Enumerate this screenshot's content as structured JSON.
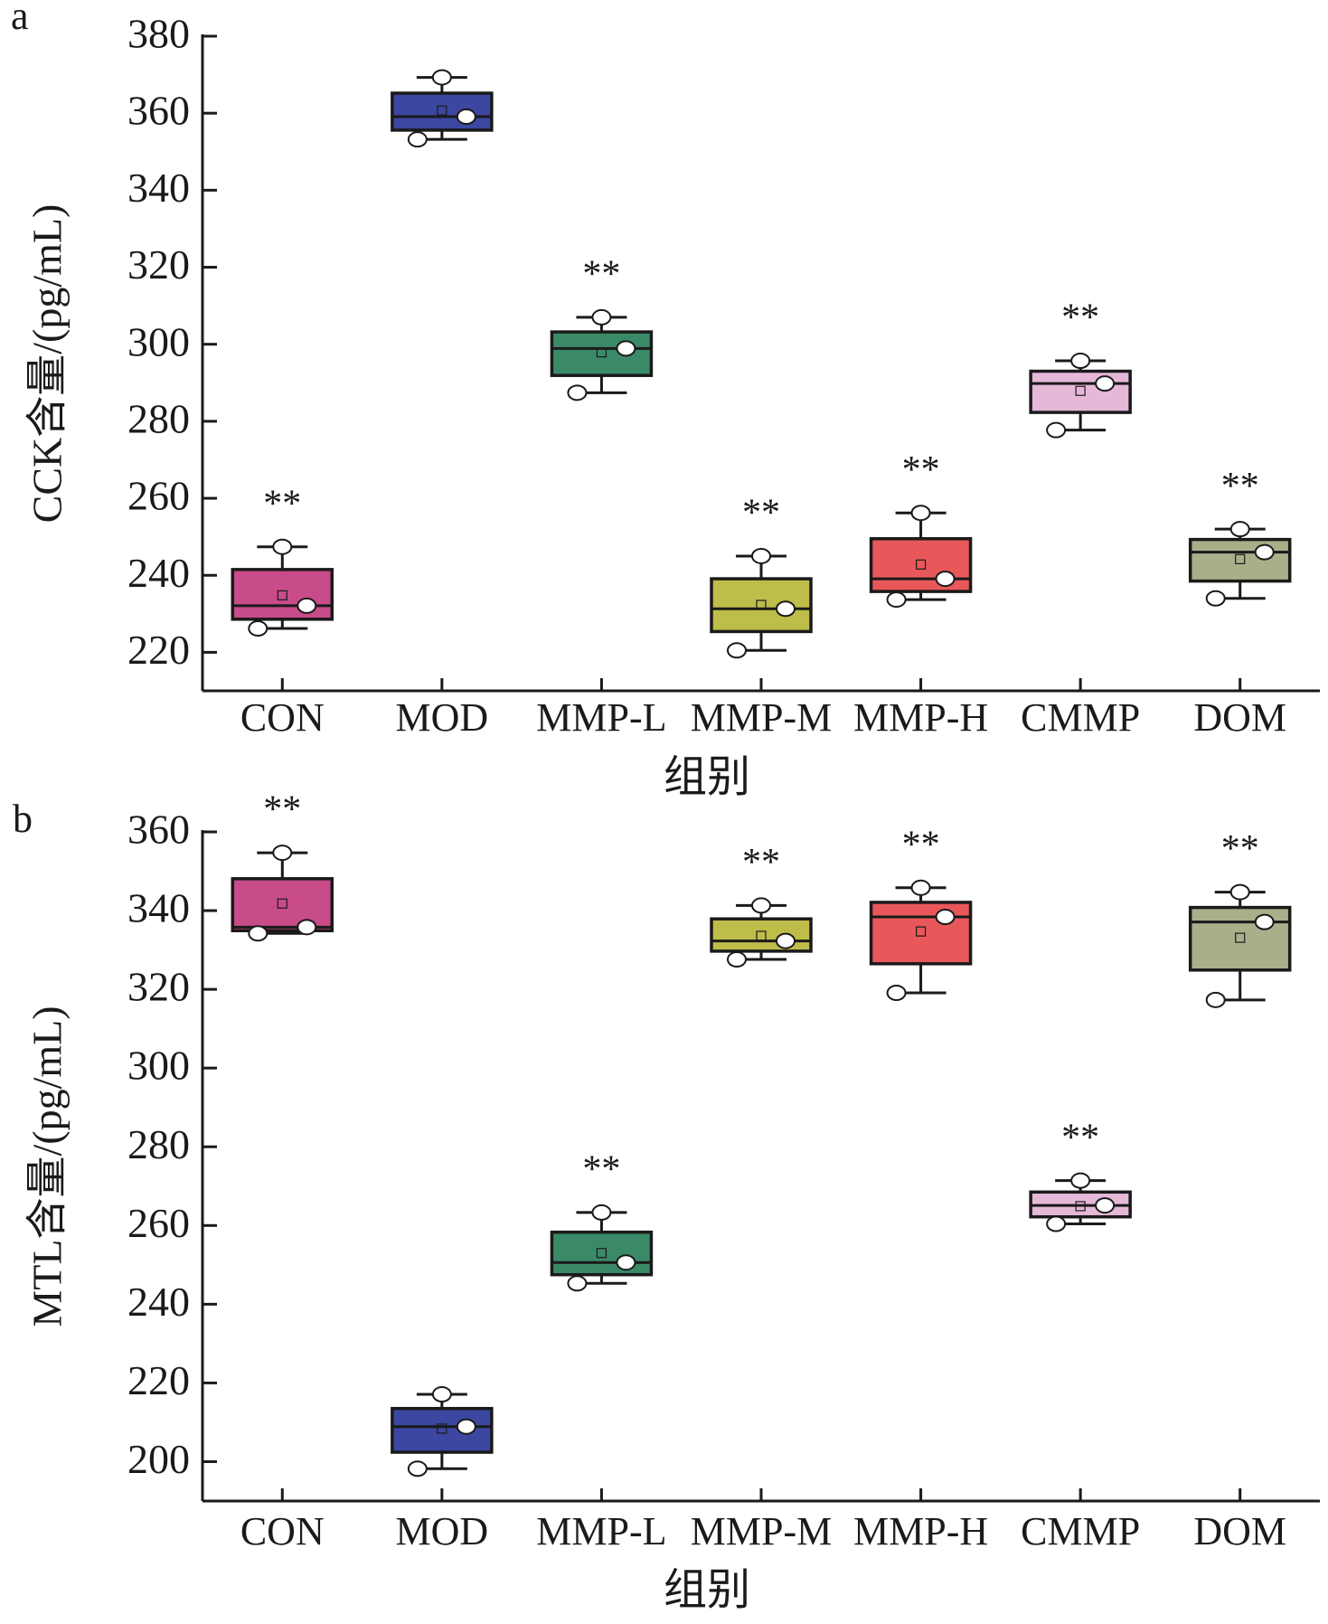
{
  "chart_data": [
    {
      "type": "box",
      "panel": "a",
      "y_label": "CCK含量/(pg/mL)",
      "x_label": "组别",
      "categories": [
        "CON",
        "MOD",
        "MMP-L",
        "MMP-M",
        "MMP-H",
        "CMMP",
        "DOM"
      ],
      "colors": [
        "#c84b8a",
        "#3b47a0",
        "#3a8a68",
        "#bfbd4a",
        "#e8585a",
        "#e6b8d8",
        "#a8b08a"
      ],
      "annotations": [
        "**",
        null,
        "**",
        "**",
        "**",
        "**",
        "**"
      ],
      "boxes": [
        {
          "whisker_low": 226.2,
          "q1": 228.6,
          "median": 232.1,
          "q3": 241.5,
          "whisker_high": 247.4,
          "mean": 234.8,
          "points": [
            247.4,
            232.1,
            226.2
          ]
        },
        {
          "whisker_low": 353.2,
          "q1": 355.6,
          "median": 359.1,
          "q3": 365.2,
          "whisker_high": 369.3,
          "mean": 360.7,
          "points": [
            369.3,
            359.1,
            353.2
          ]
        },
        {
          "whisker_low": 287.4,
          "q1": 291.9,
          "median": 298.9,
          "q3": 303.2,
          "whisker_high": 307.0,
          "mean": 297.9,
          "points": [
            307.0,
            298.9,
            287.4
          ]
        },
        {
          "whisker_low": 220.5,
          "q1": 225.4,
          "median": 231.3,
          "q3": 239.1,
          "whisker_high": 245.0,
          "mean": 232.3,
          "points": [
            245.0,
            231.3,
            220.5
          ]
        },
        {
          "whisker_low": 233.7,
          "q1": 235.8,
          "median": 239.1,
          "q3": 249.5,
          "whisker_high": 256.2,
          "mean": 242.8,
          "points": [
            256.2,
            239.1,
            233.7
          ]
        },
        {
          "whisker_low": 277.7,
          "q1": 282.3,
          "median": 289.8,
          "q3": 293.0,
          "whisker_high": 295.7,
          "mean": 287.9,
          "points": [
            295.7,
            289.8,
            277.7
          ]
        },
        {
          "whisker_low": 234.0,
          "q1": 238.5,
          "median": 246.0,
          "q3": 249.3,
          "whisker_high": 252.0,
          "mean": 244.2,
          "points": [
            252.0,
            246.0,
            234.0
          ]
        }
      ],
      "ylim": [
        210,
        380
      ],
      "yticks": [
        220,
        240,
        260,
        280,
        300,
        320,
        340,
        360,
        380
      ]
    },
    {
      "type": "box",
      "panel": "b",
      "y_label": "MTL含量/(pg/mL)",
      "x_label": "组别",
      "categories": [
        "CON",
        "MOD",
        "MMP-L",
        "MMP-M",
        "MMP-H",
        "CMMP",
        "DOM"
      ],
      "colors": [
        "#c84b8a",
        "#3b47a0",
        "#3a8a68",
        "#bfbd4a",
        "#e8585a",
        "#e6b8d8",
        "#a8b08a"
      ],
      "annotations": [
        "**",
        null,
        "**",
        "**",
        "**",
        "**",
        "**"
      ],
      "boxes": [
        {
          "whisker_low": 334.2,
          "q1": 334.9,
          "median": 335.8,
          "q3": 348.1,
          "whisker_high": 354.7,
          "mean": 341.8,
          "points": [
            354.7,
            335.8,
            334.2
          ]
        },
        {
          "whisker_low": 198.2,
          "q1": 202.4,
          "median": 208.9,
          "q3": 213.5,
          "whisker_high": 217.1,
          "mean": 208.4,
          "points": [
            217.1,
            208.9,
            198.2
          ]
        },
        {
          "whisker_low": 245.3,
          "q1": 247.5,
          "median": 250.6,
          "q3": 258.3,
          "whisker_high": 263.3,
          "mean": 253.0,
          "points": [
            263.3,
            250.6,
            245.3
          ]
        },
        {
          "whisker_low": 327.6,
          "q1": 329.7,
          "median": 332.3,
          "q3": 337.9,
          "whisker_high": 341.3,
          "mean": 333.6,
          "points": [
            341.3,
            332.3,
            327.6
          ]
        },
        {
          "whisker_low": 319.1,
          "q1": 326.5,
          "median": 338.4,
          "q3": 342.1,
          "whisker_high": 345.8,
          "mean": 334.7,
          "points": [
            345.8,
            338.4,
            319.1
          ]
        },
        {
          "whisker_low": 260.4,
          "q1": 262.2,
          "median": 265.1,
          "q3": 268.5,
          "whisker_high": 271.4,
          "mean": 264.9,
          "points": [
            271.4,
            265.1,
            260.4
          ]
        },
        {
          "whisker_low": 317.3,
          "q1": 324.9,
          "median": 337.1,
          "q3": 340.8,
          "whisker_high": 344.7,
          "mean": 333.1,
          "points": [
            344.7,
            337.1,
            317.3
          ]
        }
      ],
      "ylim": [
        190,
        360
      ],
      "yticks": [
        200,
        220,
        240,
        260,
        280,
        300,
        320,
        340,
        360
      ]
    }
  ]
}
